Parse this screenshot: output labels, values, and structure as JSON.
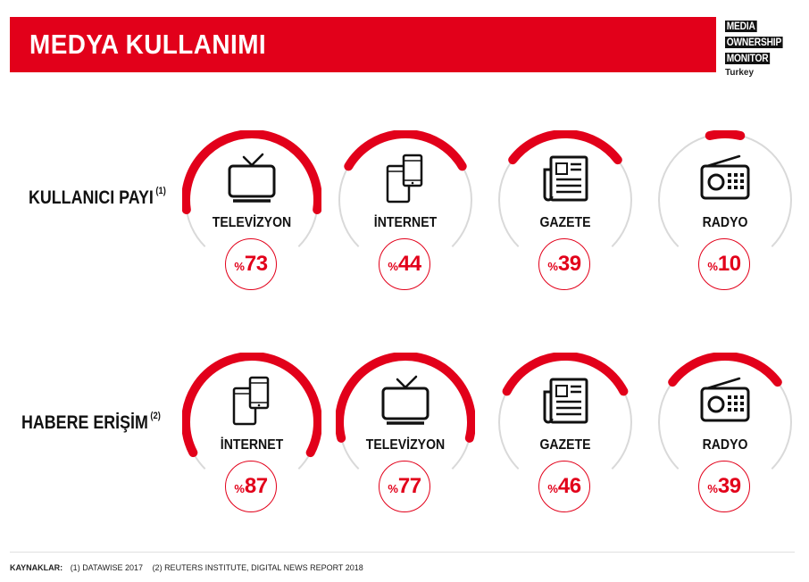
{
  "header": {
    "title": "MEDYA KULLANIMI"
  },
  "logo": {
    "lines": [
      "MEDIA",
      "OWNERSHIP",
      "MONITOR"
    ],
    "country": "Turkey"
  },
  "colors": {
    "accent": "#e2001a",
    "track": "#d9d9d9"
  },
  "chart_data": [
    {
      "type": "radial-gauge",
      "title": "KULLANICI PAYI",
      "footnote_marker": "(1)",
      "unit": "%",
      "items": [
        {
          "label": "TELEVİZYON",
          "value": 73,
          "icon": "tv-icon"
        },
        {
          "label": "İNTERNET",
          "value": 44,
          "icon": "devices-icon"
        },
        {
          "label": "GAZETE",
          "value": 39,
          "icon": "newspaper-icon"
        },
        {
          "label": "RADYO",
          "value": 10,
          "icon": "radio-icon"
        }
      ]
    },
    {
      "type": "radial-gauge",
      "title": "HABERE ERİŞİM",
      "footnote_marker": "(2)",
      "unit": "%",
      "items": [
        {
          "label": "İNTERNET",
          "value": 87,
          "icon": "devices-icon"
        },
        {
          "label": "TELEVİZYON",
          "value": 77,
          "icon": "tv-icon"
        },
        {
          "label": "GAZETE",
          "value": 46,
          "icon": "newspaper-icon"
        },
        {
          "label": "RADYO",
          "value": 39,
          "icon": "radio-icon"
        }
      ]
    }
  ],
  "footer": {
    "label": "KAYNAKLAR:",
    "sources": [
      "(1) DATAWISE 2017",
      "(2) REUTERS INSTITUTE, DIGITAL NEWS REPORT 2018"
    ]
  }
}
